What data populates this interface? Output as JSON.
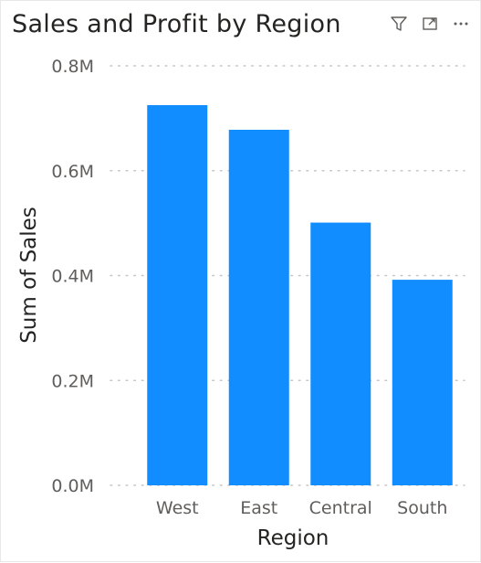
{
  "visual": {
    "title": "Sales and Profit by Region",
    "icons": [
      "filter-icon",
      "focus-mode-icon",
      "more-options-icon"
    ]
  },
  "chart_data": {
    "type": "bar",
    "categories": [
      "West",
      "East",
      "Central",
      "South"
    ],
    "values": [
      725000,
      678000,
      501000,
      392000
    ],
    "xlabel": "Region",
    "ylabel": "Sum of Sales",
    "ylim": [
      0,
      800000
    ],
    "yticks": [
      0,
      200000,
      400000,
      600000,
      800000
    ],
    "ytick_labels": [
      "0.0M",
      "0.2M",
      "0.4M",
      "0.6M",
      "0.8M"
    ],
    "grid": true,
    "legend": "none",
    "bar_color": "#118DFF",
    "grid_color": "#c8c6c4"
  }
}
